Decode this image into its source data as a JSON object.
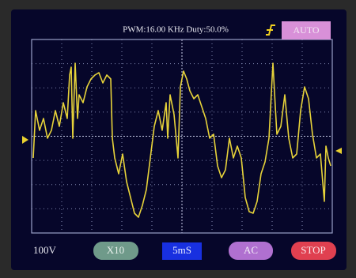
{
  "header": {
    "status": "PWM:16.00 KHz Duty:50.0%",
    "mode": "AUTO"
  },
  "footer": {
    "volts": "100V",
    "probe": "X10",
    "timebase": "5mS",
    "coupling": "AC",
    "run": "STOP"
  }
}
